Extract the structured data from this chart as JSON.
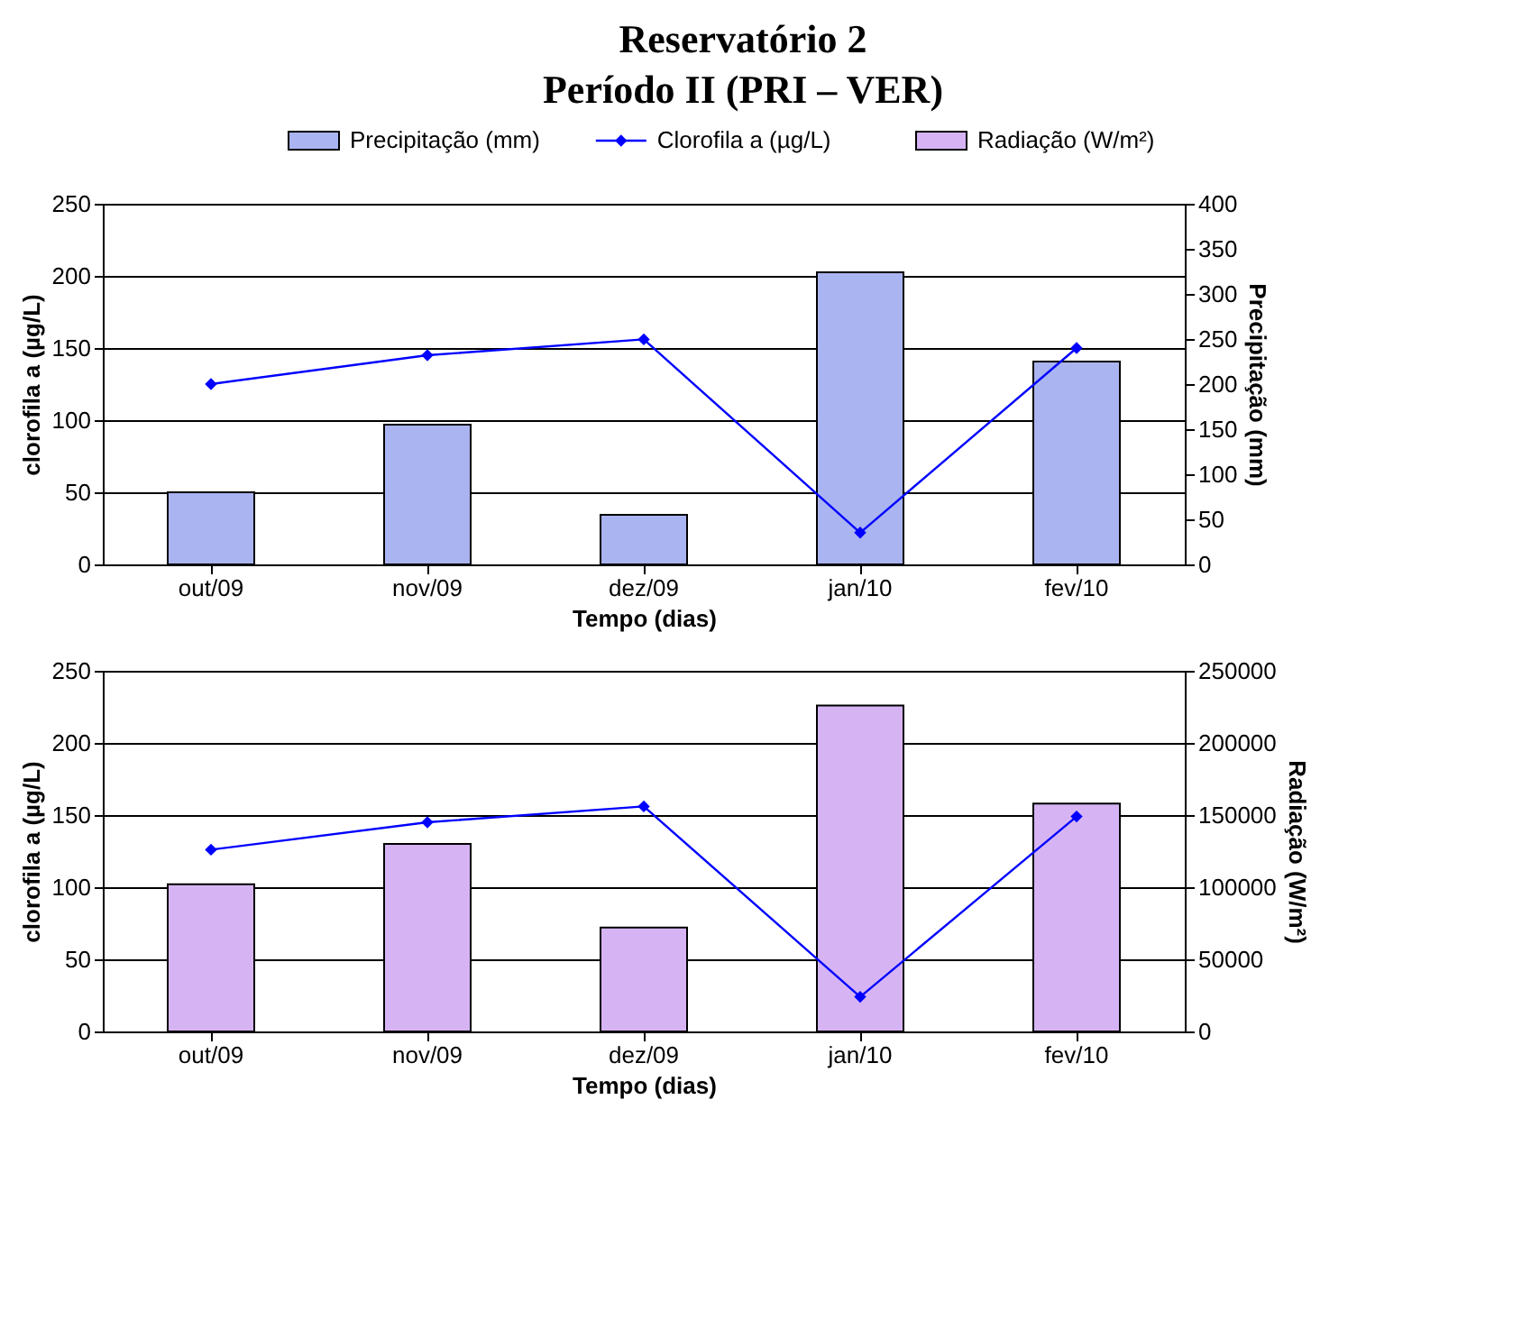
{
  "chart_data": [
    {
      "type": "bar",
      "title": "Reservatório 2",
      "subtitle": "Período II (PRI – VER)",
      "legend": "top",
      "grid": "y",
      "categories": [
        "out/09",
        "nov/09",
        "dez/09",
        "jan/10",
        "fev/10"
      ],
      "xlabel": "Tempo (dias)",
      "ylabel": "clorofila a (µg/L)",
      "y2label": "Precipitação (mm)",
      "ylim": [
        0,
        250
      ],
      "yticks": [
        0,
        50,
        100,
        150,
        200,
        250
      ],
      "y2lim": [
        0,
        400
      ],
      "y2ticks": [
        0,
        50,
        100,
        150,
        200,
        250,
        300,
        350,
        400
      ],
      "series": [
        {
          "name": "Precipitação (mm)",
          "axis": "y2",
          "color": "#aab4f0",
          "values": [
            80,
            155,
            55,
            324,
            225
          ]
        },
        {
          "name": "Clorofila a (µg/L)",
          "type": "line",
          "marker": "diamond",
          "color": "#0000ff",
          "values": [
            125,
            145,
            156,
            22,
            150
          ]
        }
      ]
    },
    {
      "type": "bar",
      "legend": "top",
      "grid": "y",
      "categories": [
        "out/09",
        "nov/09",
        "dez/09",
        "jan/10",
        "fev/10"
      ],
      "xlabel": "Tempo (dias)",
      "ylabel": "clorofila a (µg/L)",
      "y2label": "Radiação (W/m²)",
      "ylim": [
        0,
        250
      ],
      "yticks": [
        0,
        50,
        100,
        150,
        200,
        250
      ],
      "y2lim": [
        0,
        250000
      ],
      "y2ticks": [
        0,
        50000,
        100000,
        150000,
        200000,
        250000
      ],
      "series": [
        {
          "name": "Radiação (W/m²)",
          "axis": "y2",
          "color": "#d6b4f4",
          "values": [
            102000,
            130000,
            72000,
            226000,
            158000
          ]
        },
        {
          "name": "Clorofila a (µg/L)",
          "type": "line",
          "marker": "diamond",
          "color": "#0000ff",
          "values": [
            126,
            145,
            156,
            24,
            149
          ]
        }
      ]
    }
  ]
}
